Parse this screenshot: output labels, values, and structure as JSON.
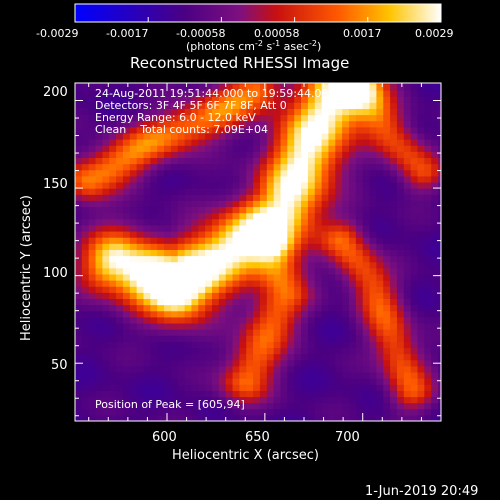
{
  "colorbar": {
    "ticks": [
      "-0.0029",
      "-0.0017",
      "-0.00058",
      "0.00058",
      "0.0017",
      "0.0029"
    ],
    "unit_pre": "(photons cm",
    "unit_sup1": "-2",
    "unit_mid1": " s",
    "unit_sup2": "-1",
    "unit_mid2": " asec",
    "unit_sup3": "-2",
    "unit_post": ")"
  },
  "chart_data": {
    "type": "heatmap",
    "title": "Reconstructed RHESSI Image",
    "xlabel": "Heliocentric X (arcsec)",
    "ylabel": "Heliocentric Y (arcsec)",
    "xlim": [
      553,
      740
    ],
    "ylim": [
      17,
      210
    ],
    "xticks": [
      "600",
      "650",
      "700"
    ],
    "yticks": [
      "50",
      "100",
      "150",
      "200"
    ],
    "colorbar_range": [
      -0.0029,
      0.0029
    ],
    "annotations": [
      "24-Aug-2011 19:51:44.000 to 19:59:44.000",
      "Detectors: 3F 4F 5F 6F 7F 8F, Att 0",
      "Energy Range: 6.0 - 12.0 keV",
      "Clean    Total counts: 7.09E+04"
    ],
    "peak_label": "Position of Peak = [605,94]",
    "peak": [
      605,
      94
    ],
    "features": [
      {
        "name": "main ridge",
        "points": [
          [
            575,
            108
          ],
          [
            605,
            94
          ],
          [
            635,
            118
          ],
          [
            660,
            138
          ],
          [
            675,
            180
          ],
          [
            690,
            210
          ]
        ],
        "width": 13,
        "amp": 1.0
      },
      {
        "name": "spur",
        "points": [
          [
            560,
            155
          ],
          [
            590,
            175
          ],
          [
            620,
            190
          ],
          [
            645,
            205
          ]
        ],
        "width": 9,
        "amp": 0.65
      },
      {
        "name": "bridge",
        "points": [
          [
            655,
            115
          ],
          [
            660,
            90
          ],
          [
            650,
            65
          ],
          [
            640,
            40
          ]
        ],
        "width": 9,
        "amp": 0.6
      },
      {
        "name": "lower right ridge",
        "points": [
          [
            690,
            120
          ],
          [
            705,
            95
          ],
          [
            715,
            65
          ],
          [
            725,
            35
          ]
        ],
        "width": 8,
        "amp": 0.55
      },
      {
        "name": "upper right ridge",
        "points": [
          [
            700,
            205
          ],
          [
            715,
            180
          ],
          [
            730,
            160
          ]
        ],
        "width": 8,
        "amp": 0.5
      }
    ]
  },
  "footer": {
    "timestamp": "1-Jun-2019 20:49"
  }
}
